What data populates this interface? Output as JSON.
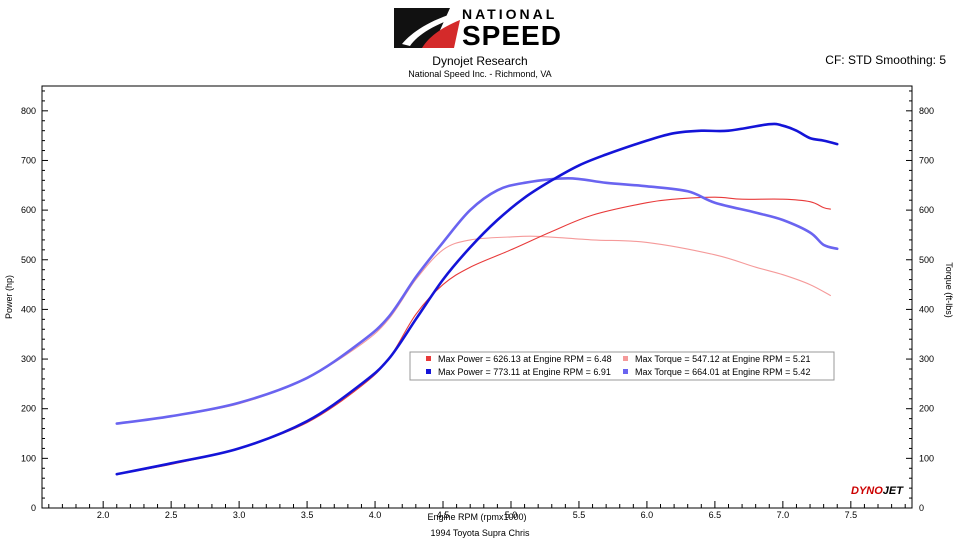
{
  "header": {
    "brand_top": "NATIONAL",
    "brand_bottom": "SPEED",
    "title": "Dynojet Research",
    "subtitle": "National Speed Inc. - Richmond, VA",
    "settings": "CF: STD Smoothing: 5"
  },
  "footer": {
    "run_name": "1994 Toyota Supra Chris",
    "logo_text_a": "DYNO",
    "logo_text_b": "JET"
  },
  "colors": {
    "blue_dark": "#1414d8",
    "blue_light": "#6a64f0",
    "red_dark": "#e83a3a",
    "red_light": "#f59a9a"
  },
  "chart_data": {
    "type": "line",
    "xlabel": "Engine RPM (rpmx1000)",
    "ylabel_left": "Power (hp)",
    "ylabel_right": "Torque (ft-lbs)",
    "xlim": [
      1.55,
      7.95
    ],
    "ylim": [
      0,
      850
    ],
    "xticks": [
      "2.0",
      "2.5",
      "3.0",
      "3.5",
      "4.0",
      "4.5",
      "5.0",
      "5.5",
      "6.0",
      "6.5",
      "7.0",
      "7.5"
    ],
    "yticks": [
      "0",
      "100",
      "200",
      "300",
      "400",
      "500",
      "600",
      "700",
      "800"
    ],
    "grid": false,
    "legend_position": "center",
    "series": [
      {
        "name": "Max Power = 626.13 at Engine RPM = 6.48",
        "color_key": "red_dark",
        "x": [
          2.1,
          2.5,
          3.0,
          3.5,
          3.9,
          4.1,
          4.3,
          4.5,
          4.7,
          5.0,
          5.3,
          5.6,
          6.0,
          6.2,
          6.5,
          6.7,
          7.0,
          7.2,
          7.3,
          7.35
        ],
        "y": [
          68,
          88,
          120,
          172,
          246,
          300,
          390,
          450,
          485,
          520,
          557,
          590,
          615,
          622,
          626,
          622,
          622,
          617,
          605,
          602
        ]
      },
      {
        "name": "Max Power = 773.11 at Engine RPM = 6.91",
        "color_key": "blue_dark",
        "x": [
          2.1,
          2.5,
          3.0,
          3.5,
          3.9,
          4.1,
          4.3,
          4.5,
          4.7,
          4.9,
          5.1,
          5.3,
          5.5,
          5.7,
          6.0,
          6.2,
          6.4,
          6.6,
          6.9,
          7.0,
          7.1,
          7.2,
          7.3,
          7.4
        ],
        "y": [
          68,
          90,
          120,
          175,
          250,
          300,
          380,
          460,
          525,
          580,
          625,
          660,
          690,
          712,
          740,
          755,
          760,
          760,
          773,
          770,
          760,
          745,
          740,
          733
        ]
      },
      {
        "name": "Max Torque = 547.12 at Engine RPM = 5.21",
        "color_key": "red_light",
        "x": [
          2.1,
          2.5,
          3.0,
          3.5,
          3.9,
          4.1,
          4.3,
          4.5,
          4.7,
          5.0,
          5.21,
          5.6,
          6.0,
          6.5,
          6.8,
          7.0,
          7.2,
          7.35
        ],
        "y": [
          170,
          185,
          210,
          262,
          330,
          380,
          460,
          520,
          540,
          546,
          547,
          540,
          535,
          510,
          485,
          470,
          450,
          428
        ]
      },
      {
        "name": "Max Torque = 664.01 at Engine RPM = 5.42",
        "color_key": "blue_light",
        "x": [
          2.1,
          2.5,
          3.0,
          3.5,
          3.9,
          4.1,
          4.3,
          4.5,
          4.7,
          4.9,
          5.1,
          5.42,
          5.7,
          6.0,
          6.3,
          6.5,
          6.8,
          7.0,
          7.2,
          7.3,
          7.4
        ],
        "y": [
          170,
          185,
          212,
          262,
          335,
          385,
          465,
          535,
          600,
          640,
          655,
          664,
          655,
          648,
          638,
          615,
          595,
          580,
          555,
          530,
          522
        ]
      }
    ]
  }
}
